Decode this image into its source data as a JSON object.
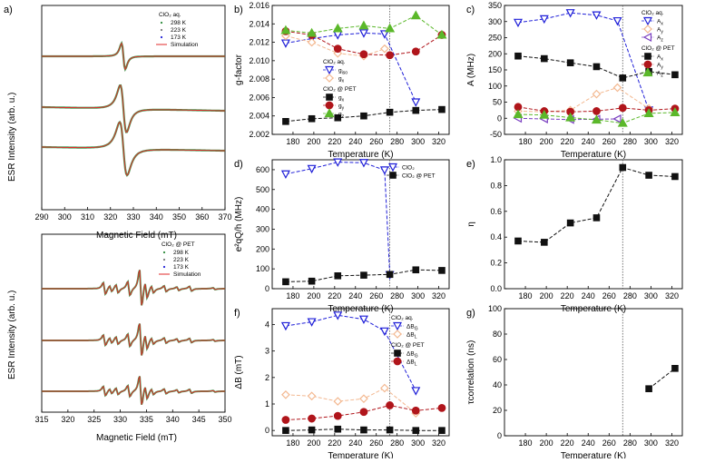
{
  "temps": [
    173,
    198,
    223,
    248,
    268,
    298,
    323
  ],
  "vline_T": 273,
  "colors": {
    "blue": "#1f1fd8",
    "orange": "#f3b890",
    "green": "#5bb82a",
    "red": "#b0151b",
    "black": "#111111",
    "purple": "#7a3fc0",
    "traceGreen": "#2c8a3a",
    "traceSim": "#e02828"
  },
  "panel_a": {
    "label": "a)",
    "top": {
      "ylabel": "ESR Intensity (arb. u.)",
      "xlabel": "Magnetic Field (mT)",
      "xlim": [
        290,
        370
      ],
      "xticks": [
        "290",
        "300",
        "310",
        "320",
        "330",
        "340",
        "350",
        "360",
        "370"
      ],
      "legend_title": "ClO₂ aq.",
      "legend": [
        "298 K",
        "223 K",
        "173 K",
        "Simulation"
      ]
    },
    "bottom": {
      "ylabel": "ESR Intensity (arb. u.)",
      "xlabel": "Magnetic Field (mT)",
      "xlim": [
        315,
        350
      ],
      "xticks": [
        "315",
        "320",
        "325",
        "330",
        "335",
        "340",
        "345",
        "350"
      ],
      "legend_title": "ClO₂ @ PET",
      "legend": [
        "298 K",
        "223 K",
        "173 K",
        "Simulation"
      ]
    }
  },
  "chart_data": [
    {
      "id": "b",
      "label": "b)",
      "type": "line",
      "xlabel": "Temperature (K)",
      "ylabel": "g-factor",
      "xlim": [
        160,
        330
      ],
      "ylim": [
        2.002,
        2.016
      ],
      "xticks": [
        "180",
        "200",
        "220",
        "240",
        "260",
        "280",
        "300",
        "320"
      ],
      "yticks": [
        "2.002",
        "2.004",
        "2.006",
        "2.008",
        "2.010",
        "2.012",
        "2.014",
        "2.016"
      ],
      "legend_groups": [
        {
          "title": "ClO₂ aq.",
          "items": [
            "g_iso",
            "g_x"
          ]
        },
        {
          "title": "ClO₂ @ PET",
          "items": [
            "g_x",
            "g_y",
            "g_z"
          ]
        }
      ],
      "series": [
        {
          "name": "g_iso (ClO2 aq.)",
          "label": "g",
          "sub": "iso",
          "marker": "tri-down",
          "color": "blue",
          "x": [
            173,
            198,
            223,
            248,
            268,
            298
          ],
          "y": [
            2.0119,
            2.0124,
            2.0128,
            2.013,
            2.0129,
            2.0055
          ]
        },
        {
          "name": "g_x (ClO2 aq.)",
          "label": "g",
          "sub": "x",
          "marker": "diamond",
          "color": "orange",
          "x": [
            173,
            198,
            223,
            248,
            268
          ],
          "y": [
            2.0127,
            2.012,
            2.0108,
            2.0105,
            2.0113
          ]
        },
        {
          "name": "g_x (ClO2 @ PET)",
          "label": "g",
          "sub": "x",
          "marker": "square",
          "color": "black",
          "x": [
            173,
            198,
            223,
            248,
            273,
            298,
            323
          ],
          "y": [
            2.0034,
            2.0037,
            2.0038,
            2.004,
            2.0044,
            2.0046,
            2.0047
          ]
        },
        {
          "name": "g_y (ClO2 @ PET)",
          "label": "g",
          "sub": "y",
          "marker": "circle",
          "color": "red",
          "x": [
            173,
            198,
            223,
            248,
            273,
            298,
            323
          ],
          "y": [
            2.0132,
            2.0128,
            2.0113,
            2.0107,
            2.0106,
            2.011,
            2.0128
          ]
        },
        {
          "name": "g_z (ClO2 @ PET)",
          "label": "g",
          "sub": "z",
          "marker": "tri-up",
          "color": "green",
          "x": [
            173,
            198,
            223,
            248,
            273,
            298,
            323
          ],
          "y": [
            2.0133,
            2.013,
            2.0135,
            2.0138,
            2.0135,
            2.0149,
            2.0128
          ]
        }
      ]
    },
    {
      "id": "c",
      "label": "c)",
      "type": "line",
      "xlabel": "Temperature (K)",
      "ylabel": "A (MHz)",
      "xlim": [
        160,
        330
      ],
      "ylim": [
        -50,
        350
      ],
      "xticks": [
        "180",
        "200",
        "220",
        "240",
        "260",
        "280",
        "300",
        "320"
      ],
      "yticks": [
        "-50",
        "0",
        "50",
        "100",
        "150",
        "200",
        "250",
        "300",
        "350"
      ],
      "legend_groups": [
        {
          "title": "ClO₂ aq.",
          "items": [
            "A_x",
            "A_y",
            "A_z"
          ]
        },
        {
          "title": "ClO₂ @ PET",
          "items": [
            "A_x",
            "A_y",
            "A_z"
          ]
        }
      ],
      "series": [
        {
          "name": "A_x (ClO2 aq.)",
          "label": "A",
          "sub": "x",
          "marker": "tri-down",
          "color": "blue",
          "x": [
            173,
            198,
            223,
            248,
            268,
            298
          ],
          "y": [
            297,
            308,
            327,
            320,
            302,
            25
          ]
        },
        {
          "name": "A_y (ClO2 aq.)",
          "label": "A",
          "sub": "y",
          "marker": "diamond",
          "color": "orange",
          "x": [
            173,
            198,
            223,
            248,
            268,
            298
          ],
          "y": [
            22,
            20,
            25,
            75,
            95,
            30
          ]
        },
        {
          "name": "A_z (ClO2 aq.)",
          "label": "A",
          "sub": "z",
          "marker": "tri-left",
          "color": "purple",
          "x": [
            173,
            198,
            223,
            248,
            268
          ],
          "y": [
            0,
            -2,
            -4,
            -3,
            -2
          ]
        },
        {
          "name": "A_x (ClO2 @ PET)",
          "label": "A",
          "sub": "x",
          "marker": "square",
          "color": "black",
          "x": [
            173,
            198,
            223,
            248,
            273,
            298,
            323
          ],
          "y": [
            193,
            185,
            172,
            160,
            125,
            145,
            135
          ]
        },
        {
          "name": "A_y (ClO2 @ PET)",
          "label": "A",
          "sub": "y",
          "marker": "circle",
          "color": "red",
          "x": [
            173,
            198,
            223,
            248,
            273,
            298,
            323
          ],
          "y": [
            35,
            22,
            20,
            22,
            32,
            25,
            30
          ]
        },
        {
          "name": "A_z (ClO2 @ PET)",
          "label": "A",
          "sub": "z",
          "marker": "tri-up",
          "color": "green",
          "x": [
            173,
            198,
            223,
            248,
            273,
            298,
            323
          ],
          "y": [
            12,
            10,
            2,
            -5,
            -15,
            15,
            18
          ]
        }
      ]
    },
    {
      "id": "d",
      "label": "d)",
      "type": "line",
      "xlabel": "Temperature (K)",
      "ylabel": "e²qQ/h (MHz)",
      "xlim": [
        160,
        330
      ],
      "ylim": [
        0,
        650
      ],
      "xticks": [
        "180",
        "200",
        "220",
        "240",
        "260",
        "280",
        "300",
        "320"
      ],
      "yticks": [
        "0",
        "100",
        "200",
        "300",
        "400",
        "500",
        "600"
      ],
      "legend_groups": [
        {
          "title": "",
          "items": [
            "ClO₂",
            "ClO₂ @ PET"
          ]
        }
      ],
      "series": [
        {
          "name": "ClO2",
          "label": "ClO₂",
          "sub": "",
          "marker": "tri-down",
          "color": "blue",
          "x": [
            173,
            198,
            223,
            248,
            268,
            273
          ],
          "y": [
            578,
            605,
            638,
            635,
            598,
            70
          ]
        },
        {
          "name": "ClO2 @ PET",
          "label": "ClO₂ @ PET",
          "sub": "",
          "marker": "square",
          "color": "black",
          "x": [
            173,
            198,
            223,
            248,
            273,
            298,
            323
          ],
          "y": [
            35,
            38,
            65,
            68,
            72,
            95,
            92
          ]
        }
      ]
    },
    {
      "id": "e",
      "label": "e)",
      "type": "line",
      "xlabel": "Temperature (K)",
      "ylabel": "η",
      "xlim": [
        160,
        330
      ],
      "ylim": [
        0,
        1
      ],
      "xticks": [
        "180",
        "200",
        "220",
        "240",
        "260",
        "280",
        "300",
        "320"
      ],
      "yticks": [
        "0.0",
        "0.2",
        "0.4",
        "0.6",
        "0.8",
        "1.0"
      ],
      "legend_groups": [],
      "series": [
        {
          "name": "eta (ClO2 @ PET)",
          "label": "η",
          "sub": "",
          "marker": "square",
          "color": "black",
          "x": [
            173,
            198,
            223,
            248,
            273,
            298,
            323
          ],
          "y": [
            0.37,
            0.36,
            0.51,
            0.55,
            0.94,
            0.88,
            0.87
          ]
        }
      ]
    },
    {
      "id": "f",
      "label": "f)",
      "type": "line",
      "xlabel": "Temperature (K)",
      "ylabel": "ΔB (mT)",
      "xlim": [
        160,
        330
      ],
      "ylim": [
        -0.2,
        4.6
      ],
      "xticks": [
        "180",
        "200",
        "220",
        "240",
        "260",
        "280",
        "300",
        "320"
      ],
      "yticks": [
        "0",
        "1",
        "2",
        "3",
        "4"
      ],
      "legend_groups": [
        {
          "title": "ClO₂ aq.",
          "items": [
            "ΔB_G",
            "ΔB_L"
          ]
        },
        {
          "title": "ClO₂ @ PET",
          "items": [
            "ΔB_G",
            "ΔB_L"
          ]
        }
      ],
      "series": [
        {
          "name": "dB_G (ClO2 aq.)",
          "label": "ΔB",
          "sub": "G",
          "marker": "tri-down",
          "color": "blue",
          "x": [
            173,
            198,
            223,
            248,
            268,
            298
          ],
          "y": [
            3.95,
            4.1,
            4.35,
            4.2,
            3.75,
            1.5
          ]
        },
        {
          "name": "dB_L (ClO2 aq.)",
          "label": "ΔB",
          "sub": "L",
          "marker": "diamond",
          "color": "orange",
          "x": [
            173,
            198,
            223,
            248,
            268,
            298
          ],
          "y": [
            1.35,
            1.3,
            1.1,
            1.2,
            1.6,
            0.65
          ]
        },
        {
          "name": "dB_G (ClO2 @ PET)",
          "label": "ΔB",
          "sub": "G",
          "marker": "square",
          "color": "black",
          "x": [
            173,
            198,
            223,
            248,
            273,
            298,
            323
          ],
          "y": [
            0.0,
            0.02,
            0.05,
            0.02,
            0.02,
            0.0,
            0.0
          ]
        },
        {
          "name": "dB_L (ClO2 @ PET)",
          "label": "ΔB",
          "sub": "L",
          "marker": "circle",
          "color": "red",
          "x": [
            173,
            198,
            223,
            248,
            273,
            298,
            323
          ],
          "y": [
            0.4,
            0.45,
            0.55,
            0.7,
            0.95,
            0.75,
            0.85
          ]
        }
      ]
    },
    {
      "id": "g",
      "label": "g)",
      "type": "line",
      "xlabel": "Temperature (K)",
      "ylabel": "τcorrelation (ns)",
      "xlim": [
        160,
        330
      ],
      "ylim": [
        0,
        100
      ],
      "xticks": [
        "180",
        "200",
        "220",
        "240",
        "260",
        "280",
        "300",
        "320"
      ],
      "yticks": [
        "0",
        "20",
        "40",
        "60",
        "80",
        "100"
      ],
      "legend_groups": [],
      "series": [
        {
          "name": "tau (ClO2 @ PET)",
          "label": "τ",
          "sub": "",
          "marker": "square",
          "color": "black",
          "x": [
            298,
            323
          ],
          "y": [
            37,
            53
          ]
        }
      ]
    }
  ]
}
